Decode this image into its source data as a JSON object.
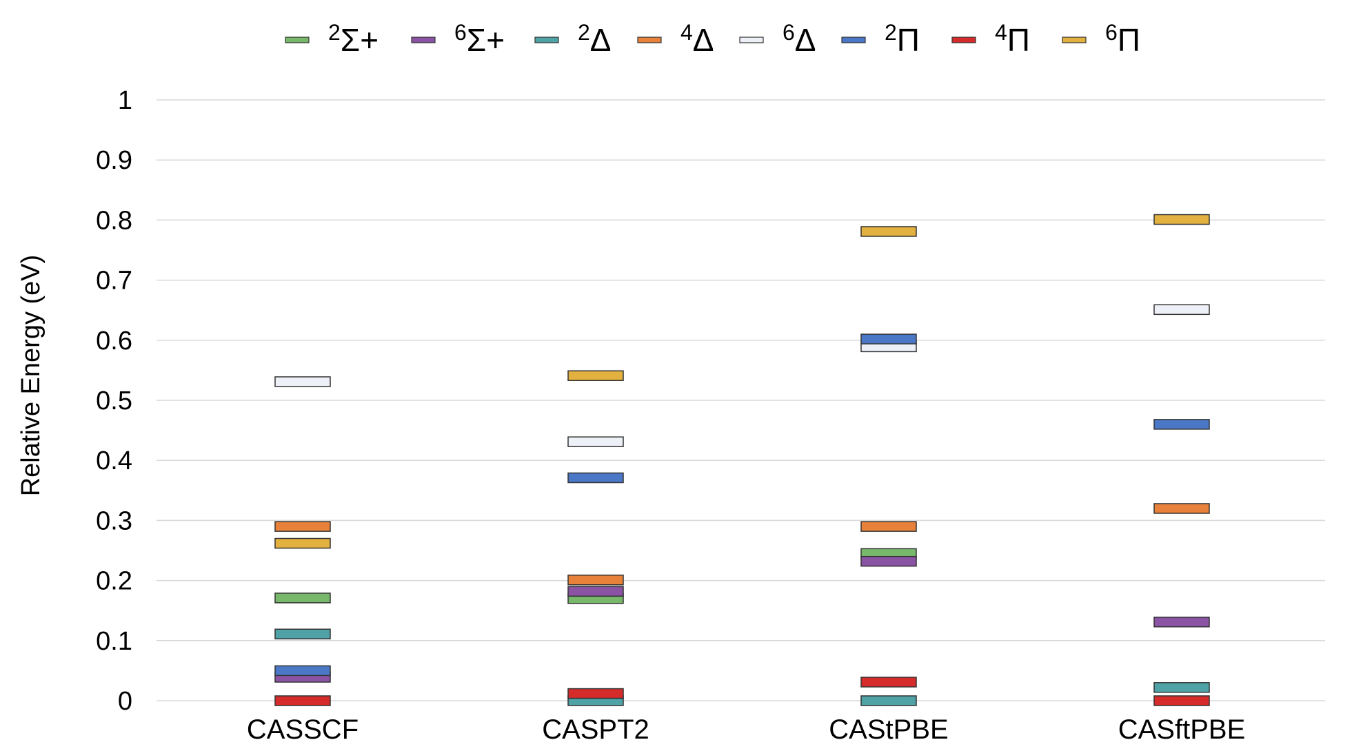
{
  "chart_data": {
    "type": "energy-level",
    "title": "",
    "xlabel": "",
    "ylabel": "Relative Energy (eV)",
    "ylim": [
      0,
      1
    ],
    "yticks": [
      "0",
      "0.1",
      "0.2",
      "0.3",
      "0.4",
      "0.5",
      "0.6",
      "0.7",
      "0.8",
      "0.9",
      "1"
    ],
    "grid": true,
    "legend_position": "top",
    "categories": [
      "CASSCF",
      "CASPT2",
      "CAStPBE",
      "CASftPBE"
    ],
    "series": [
      {
        "name": "2Σ+",
        "sup": "2",
        "term": "Σ+",
        "color": "#77b86a",
        "values": [
          0.171,
          0.17,
          0.245,
          null
        ]
      },
      {
        "name": "6Σ+",
        "sup": "6",
        "term": "Σ+",
        "color": "#8a53a3",
        "values": [
          0.039,
          0.182,
          0.232,
          0.131
        ]
      },
      {
        "name": "2Δ",
        "sup": "2",
        "term": "Δ",
        "color": "#4fa3a6",
        "values": [
          0.111,
          0.0,
          0.0,
          0.022
        ]
      },
      {
        "name": "4Δ",
        "sup": "4",
        "term": "Δ",
        "color": "#e8823a",
        "values": [
          0.29,
          0.201,
          0.29,
          0.32
        ]
      },
      {
        "name": "6Δ",
        "sup": "6",
        "term": "Δ",
        "color": "#eef0f8",
        "values": [
          0.531,
          0.431,
          0.589,
          0.651
        ]
      },
      {
        "name": "2Π",
        "sup": "2",
        "term": "Π",
        "color": "#4a78c6",
        "values": [
          0.05,
          0.371,
          0.602,
          0.46
        ]
      },
      {
        "name": "4Π",
        "sup": "4",
        "term": "Π",
        "color": "#d62b2b",
        "values": [
          0.0,
          0.012,
          0.031,
          0.0
        ]
      },
      {
        "name": "6Π",
        "sup": "6",
        "term": "Π",
        "color": "#e3b13f",
        "values": [
          0.262,
          0.541,
          0.781,
          0.801
        ]
      }
    ]
  }
}
